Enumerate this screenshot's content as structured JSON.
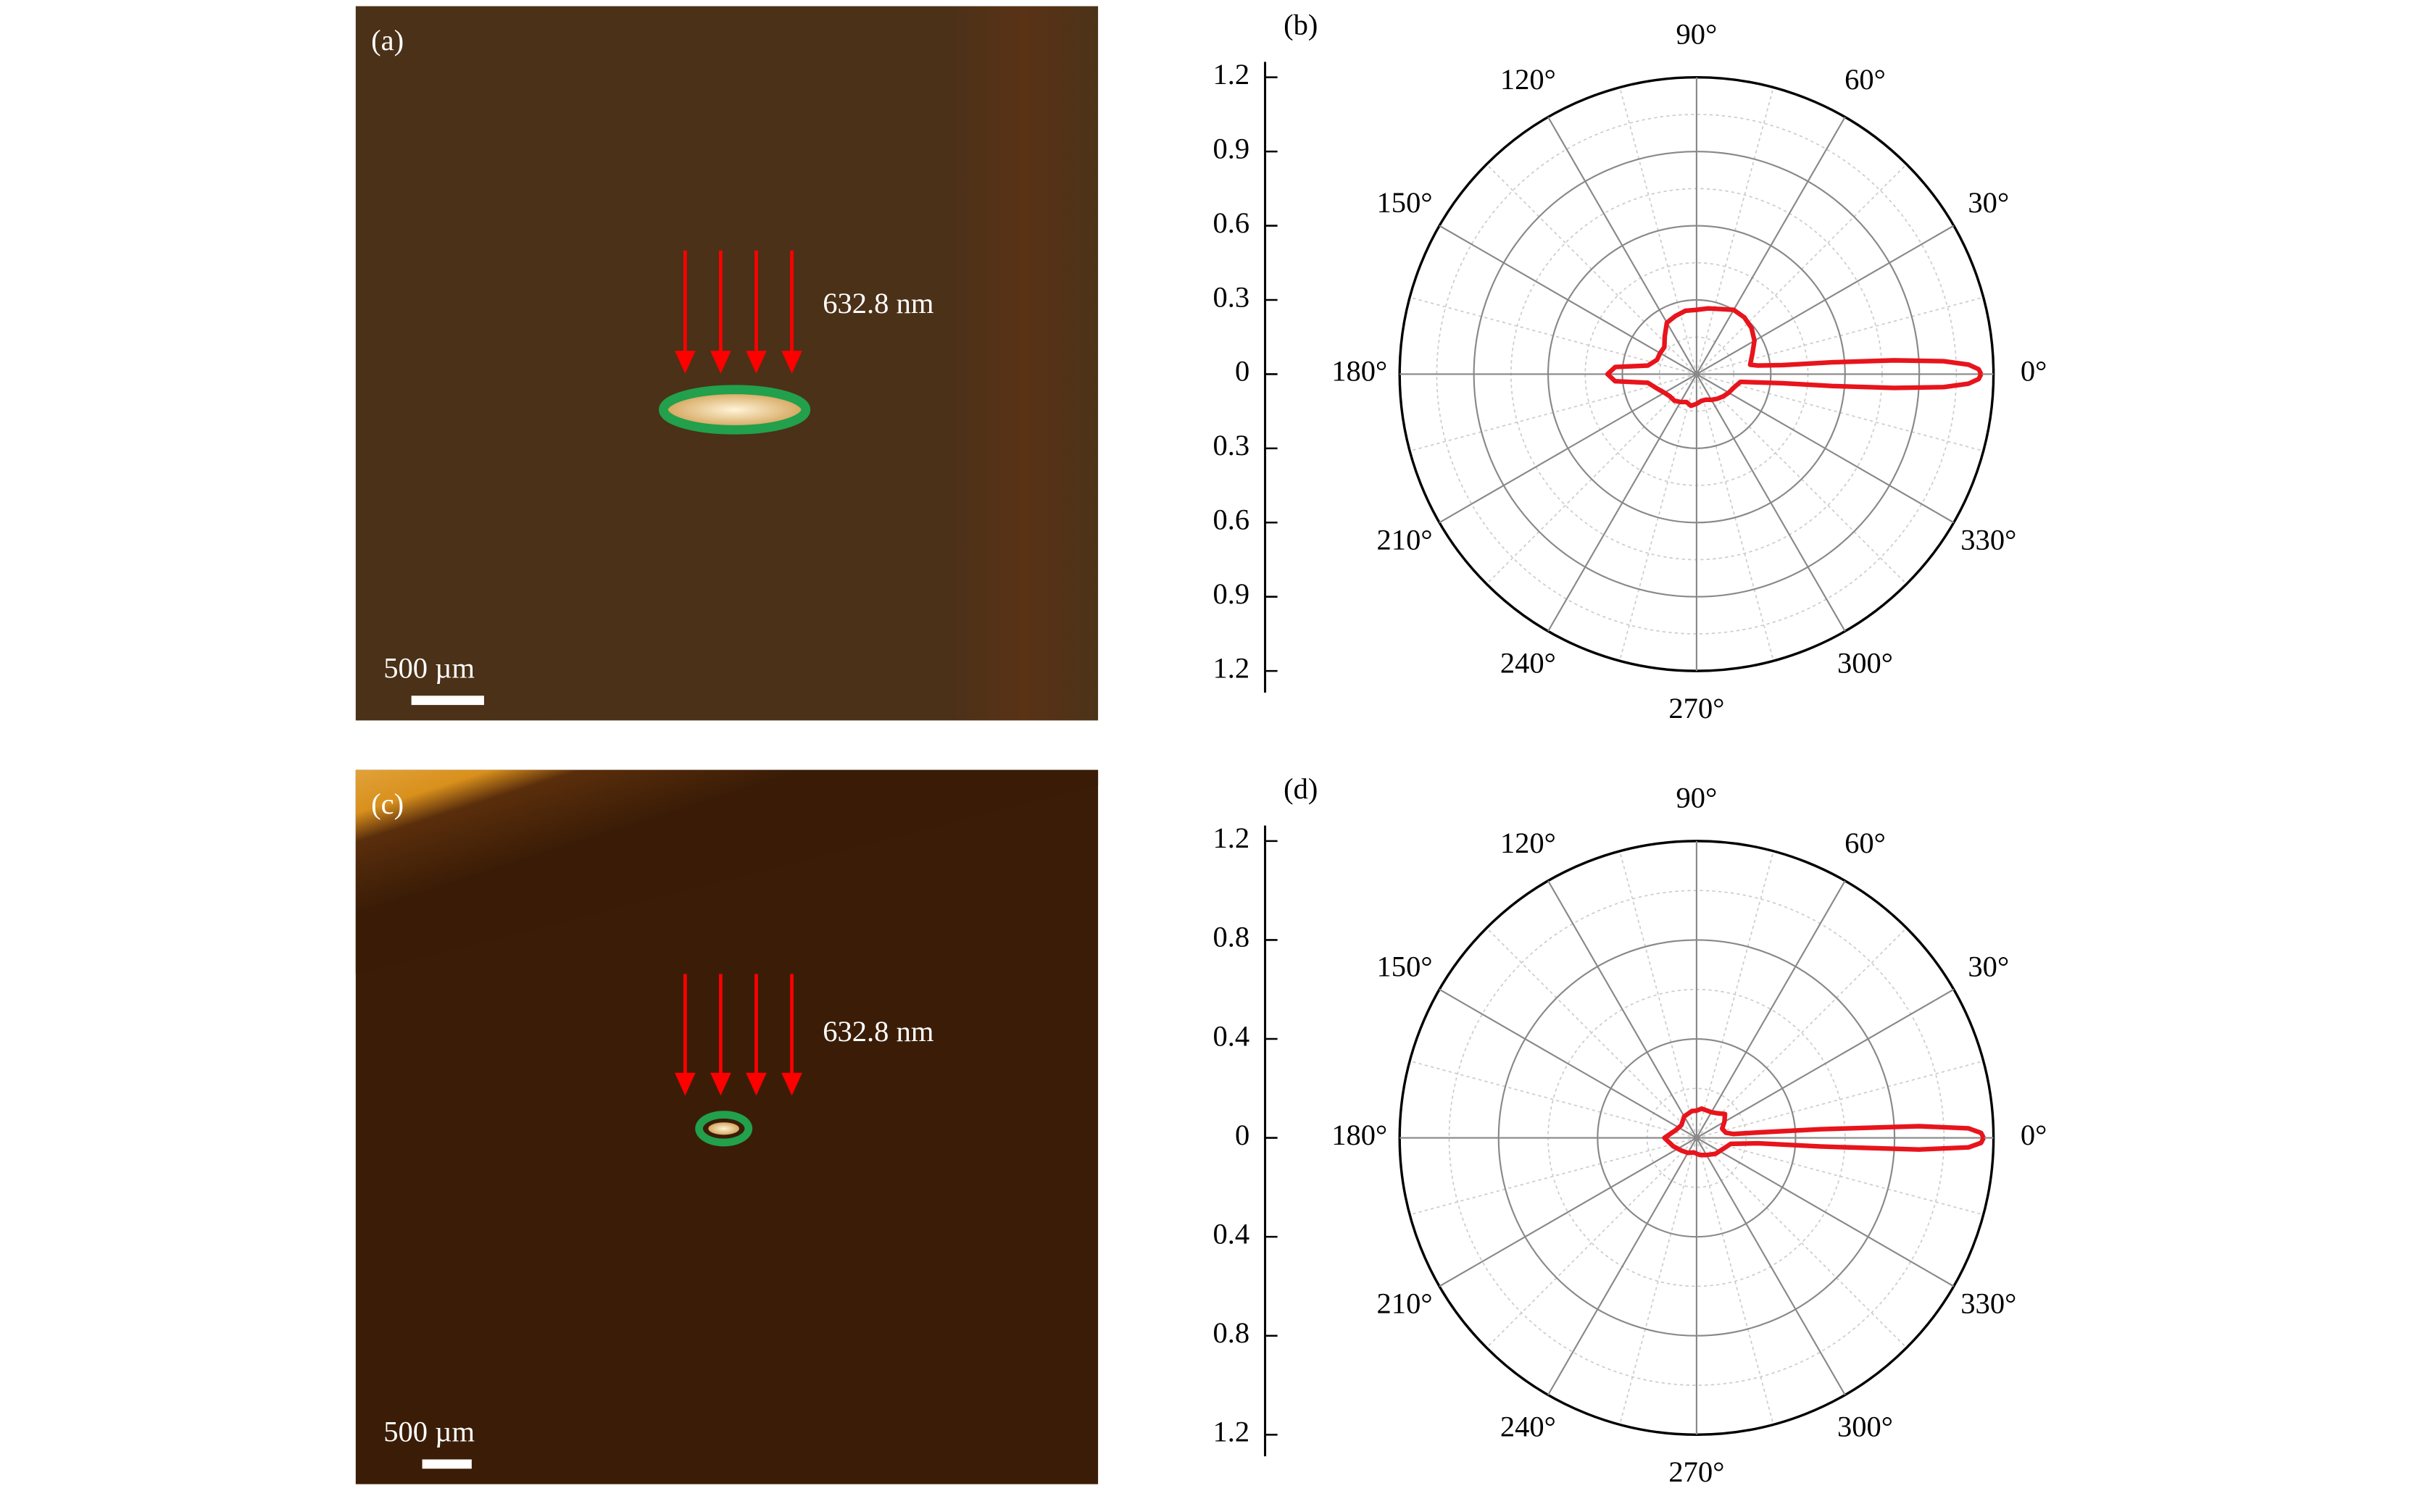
{
  "images": [
    {
      "panel_label": "(a)",
      "wavelength": "632.8 nm",
      "scale_bar": "500 µm"
    },
    {
      "panel_label": "(c)",
      "wavelength": "632.8 nm",
      "scale_bar": "500 µm"
    }
  ],
  "chart_data": [
    {
      "type": "polar",
      "panel_label": "(b)",
      "rlim": [
        0,
        1.2
      ],
      "rticks": [
        0,
        0.3,
        0.6,
        0.9,
        1.2
      ],
      "angle_ticks": [
        {
          "value": 0,
          "label": "0°"
        },
        {
          "value": 30,
          "label": "30°"
        },
        {
          "value": 60,
          "label": "60°"
        },
        {
          "value": 90,
          "label": "90°"
        },
        {
          "value": 120,
          "label": "120°"
        },
        {
          "value": 150,
          "label": "150°"
        },
        {
          "value": 180,
          "label": "180°"
        },
        {
          "value": 210,
          "label": "210°"
        },
        {
          "value": 240,
          "label": "240°"
        },
        {
          "value": 270,
          "label": "270°"
        },
        {
          "value": 300,
          "label": "300°"
        },
        {
          "value": 330,
          "label": "330°"
        }
      ],
      "grid": true,
      "series": [
        {
          "color": "#e8141c",
          "x": [
            0,
            1,
            2,
            3,
            4,
            5,
            6,
            8,
            10,
            20,
            30,
            40,
            50,
            60,
            70,
            80,
            90,
            100,
            110,
            120,
            130,
            140,
            150,
            160,
            170,
            175,
            180,
            185,
            190,
            200,
            210,
            220,
            230,
            240,
            250,
            260,
            270,
            280,
            290,
            300,
            310,
            320,
            330,
            340,
            350,
            354,
            355,
            356,
            357,
            358,
            359,
            360
          ],
          "values": [
            1.15,
            1.14,
            1.1,
            1.0,
            0.8,
            0.55,
            0.35,
            0.25,
            0.22,
            0.24,
            0.27,
            0.29,
            0.3,
            0.3,
            0.28,
            0.27,
            0.26,
            0.26,
            0.25,
            0.24,
            0.2,
            0.17,
            0.17,
            0.17,
            0.2,
            0.33,
            0.36,
            0.33,
            0.2,
            0.17,
            0.15,
            0.14,
            0.14,
            0.13,
            0.12,
            0.13,
            0.12,
            0.11,
            0.11,
            0.12,
            0.13,
            0.14,
            0.15,
            0.16,
            0.18,
            0.35,
            0.55,
            0.8,
            1.0,
            1.1,
            1.14,
            1.15
          ]
        }
      ]
    },
    {
      "type": "polar",
      "panel_label": "(d)",
      "rlim": [
        0,
        1.2
      ],
      "rticks": [
        0,
        0.4,
        0.8,
        1.2
      ],
      "angle_ticks": [
        {
          "value": 0,
          "label": "0°"
        },
        {
          "value": 30,
          "label": "30°"
        },
        {
          "value": 60,
          "label": "60°"
        },
        {
          "value": 90,
          "label": "90°"
        },
        {
          "value": 120,
          "label": "120°"
        },
        {
          "value": 150,
          "label": "150°"
        },
        {
          "value": 180,
          "label": "180°"
        },
        {
          "value": 210,
          "label": "210°"
        },
        {
          "value": 240,
          "label": "240°"
        },
        {
          "value": 270,
          "label": "270°"
        },
        {
          "value": 300,
          "label": "300°"
        },
        {
          "value": 330,
          "label": "330°"
        }
      ],
      "grid": true,
      "series": [
        {
          "color": "#e8141c",
          "x": [
            0,
            1,
            2,
            3,
            4,
            5,
            6,
            10,
            20,
            30,
            40,
            50,
            60,
            80,
            90,
            100,
            120,
            140,
            160,
            180,
            200,
            220,
            240,
            260,
            280,
            300,
            320,
            340,
            350,
            355,
            356,
            357,
            358,
            359,
            360
          ],
          "values": [
            1.16,
            1.15,
            1.1,
            0.9,
            0.5,
            0.25,
            0.15,
            0.12,
            0.11,
            0.13,
            0.15,
            0.13,
            0.12,
            0.12,
            0.11,
            0.11,
            0.1,
            0.08,
            0.09,
            0.13,
            0.1,
            0.08,
            0.07,
            0.06,
            0.07,
            0.08,
            0.1,
            0.12,
            0.14,
            0.25,
            0.5,
            0.9,
            1.1,
            1.15,
            1.16
          ]
        }
      ]
    }
  ]
}
